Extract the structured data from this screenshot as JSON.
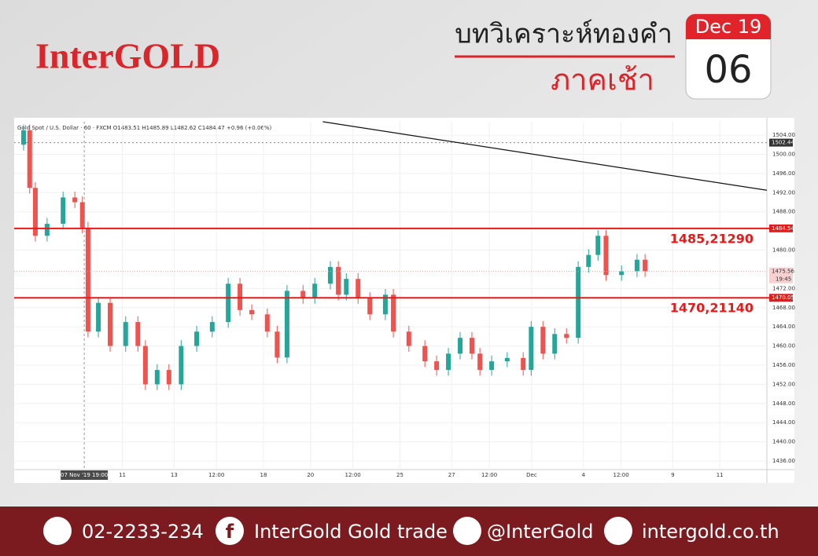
{
  "header": {
    "logo": "InterGOLD",
    "title": "บทวิเคราะห์ทองคำ",
    "subtitle": "ภาคเช้า",
    "month": "Dec 19",
    "day": "06"
  },
  "chart_data": {
    "type": "candlestick",
    "title": "Gold Spot / U.S. Dollar · 60 · FXCM  O1483.51 H1485.89 L1482.62 C1484.47 +0.96 (+0.06%)",
    "up_color": "#26a69a",
    "down_color": "#ef5350",
    "x": [
      2,
      3.3,
      4.5,
      7,
      10.4,
      12.9,
      14.5,
      15.7,
      17.9,
      20.4,
      23.7,
      26.3,
      27.9,
      30.4,
      32.9,
      35.5,
      38.8,
      42.1,
      45.5,
      48,
      50.5,
      53.8,
      55.9,
      58,
      61.4,
      63.9,
      67.2,
      68.9,
      70.6,
      73.1,
      75.6,
      78.9,
      80.6,
      83.9,
      87.3,
      89.8,
      92.3,
      94.8,
      97.3,
      99,
      101.5,
      104.8,
      108.2,
      109.9,
      112.4,
      114.9,
      117.4,
      119.9,
      122.1,
      124.1,
      125.8,
      129.1,
      132.4,
      134.1
    ],
    "open": [
      1502,
      1505,
      1493,
      1483,
      1485.5,
      1491,
      1490,
      1484.7,
      1463,
      1469,
      1460,
      1465,
      1460,
      1452,
      1455,
      1452,
      1460,
      1463,
      1465,
      1473,
      1467.5,
      1466.6,
      1463,
      1457.6,
      1471.5,
      1470,
      1473,
      1476.5,
      1470.7,
      1474,
      1470,
      1466.6,
      1470.7,
      1463,
      1460,
      1456.8,
      1455,
      1458.4,
      1461.7,
      1458.4,
      1455,
      1456.8,
      1457.5,
      1455,
      1464,
      1458.4,
      1462.5,
      1461.7,
      1476.5,
      1479,
      1483,
      1474.8,
      1475.6,
      1478
    ],
    "high": [
      1506.2,
      1506.2,
      1494.2,
      1486.7,
      1492.2,
      1492.2,
      1491.2,
      1485.9,
      1470.2,
      1470.2,
      1466.2,
      1466.2,
      1461.2,
      1456.2,
      1456.2,
      1461.2,
      1464.2,
      1466.2,
      1474.2,
      1474.2,
      1468.7,
      1467.8,
      1464.2,
      1472.7,
      1472.7,
      1474.2,
      1477.7,
      1477.7,
      1475.2,
      1475.2,
      1471.2,
      1471.9,
      1471.9,
      1464.2,
      1461.2,
      1458,
      1459.6,
      1462.9,
      1462.9,
      1459.6,
      1458,
      1458.7,
      1458.7,
      1465.2,
      1465.2,
      1463.7,
      1463.7,
      1477.7,
      1480.2,
      1484.2,
      1484.2,
      1476.8,
      1479.2,
      1479.2
    ],
    "low": [
      1500.8,
      1491.8,
      1481.8,
      1481.8,
      1484.3,
      1488.8,
      1483.5,
      1461.8,
      1461.8,
      1458.8,
      1458.8,
      1458.8,
      1450.8,
      1450.8,
      1450.8,
      1450.8,
      1458.8,
      1461.8,
      1463.8,
      1466.3,
      1465.4,
      1461.8,
      1456.4,
      1456.4,
      1468.8,
      1468.8,
      1471.8,
      1469.5,
      1469.5,
      1468.8,
      1465.4,
      1465.4,
      1461.8,
      1458.8,
      1455.6,
      1453.8,
      1453.8,
      1457.2,
      1457.2,
      1453.8,
      1453.8,
      1455.6,
      1453.8,
      1453.8,
      1457.2,
      1457.2,
      1460.5,
      1460.5,
      1475.3,
      1477.8,
      1473.6,
      1473.6,
      1474.4,
      1474.4
    ],
    "close": [
      1505,
      1493,
      1483,
      1485.5,
      1491,
      1490,
      1484.7,
      1463,
      1469,
      1460,
      1465,
      1460,
      1452,
      1455,
      1452,
      1460,
      1463,
      1465,
      1473,
      1467.5,
      1466.6,
      1463,
      1457.6,
      1471.5,
      1470,
      1473,
      1476.5,
      1470.7,
      1474,
      1470,
      1466.6,
      1470.7,
      1463,
      1460,
      1456.8,
      1455,
      1458.4,
      1461.7,
      1458.4,
      1455,
      1456.8,
      1457.5,
      1455,
      1464,
      1458.4,
      1462.5,
      1461.7,
      1476.5,
      1479,
      1483,
      1474.8,
      1475.6,
      1478,
      1475.6
    ],
    "xlim": [
      0,
      160
    ],
    "ylim": [
      1434.2,
      1506.8
    ],
    "xticks": [
      {
        "value": 23,
        "label": "11"
      },
      {
        "value": 34,
        "label": "13"
      },
      {
        "value": 43,
        "label": "12:00"
      },
      {
        "value": 53,
        "label": "18"
      },
      {
        "value": 63,
        "label": "20"
      },
      {
        "value": 72,
        "label": "12:00"
      },
      {
        "value": 82,
        "label": "25"
      },
      {
        "value": 93,
        "label": "27"
      },
      {
        "value": 101,
        "label": "12:00"
      },
      {
        "value": 110,
        "label": "Dec"
      },
      {
        "value": 121,
        "label": "4"
      },
      {
        "value": 129,
        "label": "12:00"
      },
      {
        "value": 140,
        "label": "9"
      },
      {
        "value": 150,
        "label": "11"
      }
    ],
    "yticks": [
      {
        "value": 1436,
        "label": "1436.00"
      },
      {
        "value": 1440,
        "label": "1440.00"
      },
      {
        "value": 1444,
        "label": "1444.00"
      },
      {
        "value": 1448,
        "label": "1448.00"
      },
      {
        "value": 1452,
        "label": "1452.00"
      },
      {
        "value": 1456,
        "label": "1456.00"
      },
      {
        "value": 1460,
        "label": "1460.00"
      },
      {
        "value": 1464,
        "label": "1464.00"
      },
      {
        "value": 1468,
        "label": "1468.00"
      },
      {
        "value": 1472,
        "label": "1472.00"
      },
      {
        "value": 1480,
        "label": "1480.00"
      },
      {
        "value": 1488,
        "label": "1488.00"
      },
      {
        "value": 1492,
        "label": "1492.00"
      },
      {
        "value": 1496,
        "label": "1496.00"
      },
      {
        "value": 1500,
        "label": "1500.00"
      },
      {
        "value": 1504,
        "label": "1504.00"
      }
    ],
    "crosshair": {
      "value": 14.9,
      "label": "07 Nov '19   19:00"
    },
    "levels": [
      {
        "value": 1484.54,
        "label": "1484.54",
        "annotation": "1485,21290",
        "color": "#e31b1b"
      },
      {
        "value": 1470.05,
        "label": "1470.05",
        "annotation": "1470,21140",
        "color": "#e31b1b"
      }
    ],
    "ref_line": {
      "value": 1502.44,
      "label": "1502.44"
    },
    "last_price": {
      "value": 1475.56,
      "label": "1475.56",
      "time": "19:45"
    },
    "trendline": {
      "x": [
        65.6,
        160
      ],
      "y": [
        1506.8,
        1492.5
      ]
    }
  },
  "footer": {
    "phone": "02-2233-234",
    "facebook": "InterGold Gold trade",
    "line": "@InterGold",
    "web": "intergold.co.th"
  }
}
